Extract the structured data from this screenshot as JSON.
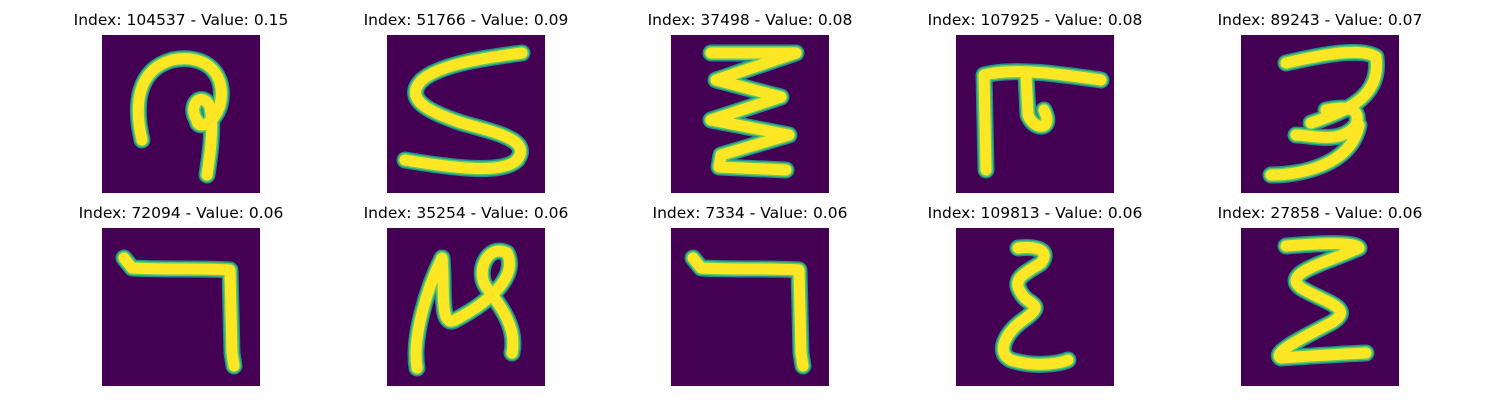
{
  "colors": {
    "background": "#440154",
    "stroke_core": "#fde725",
    "stroke_edge": "#21918c",
    "stroke_mid": "#5ec962"
  },
  "panels": [
    {
      "title": "Index: 104537 - Value: 0.15",
      "glyph": "hook-loop-icon"
    },
    {
      "title": "Index: 51766 - Value: 0.09",
      "glyph": "s-curve-icon"
    },
    {
      "title": "Index: 37498 - Value: 0.08",
      "glyph": "zigzag-icon"
    },
    {
      "title": "Index: 107925 - Value: 0.08",
      "glyph": "pi-like-icon"
    },
    {
      "title": "Index: 89243 - Value: 0.07",
      "glyph": "three-like-icon"
    },
    {
      "title": "Index: 72094 - Value: 0.06",
      "glyph": "seven-like-icon"
    },
    {
      "title": "Index: 35254 - Value: 0.06",
      "glyph": "n-loop-icon"
    },
    {
      "title": "Index: 7334 - Value: 0.06",
      "glyph": "seven-like-icon"
    },
    {
      "title": "Index: 109813 - Value: 0.06",
      "glyph": "epsilon-like-icon"
    },
    {
      "title": "Index: 27858 - Value: 0.06",
      "glyph": "sigma-like-icon"
    }
  ]
}
